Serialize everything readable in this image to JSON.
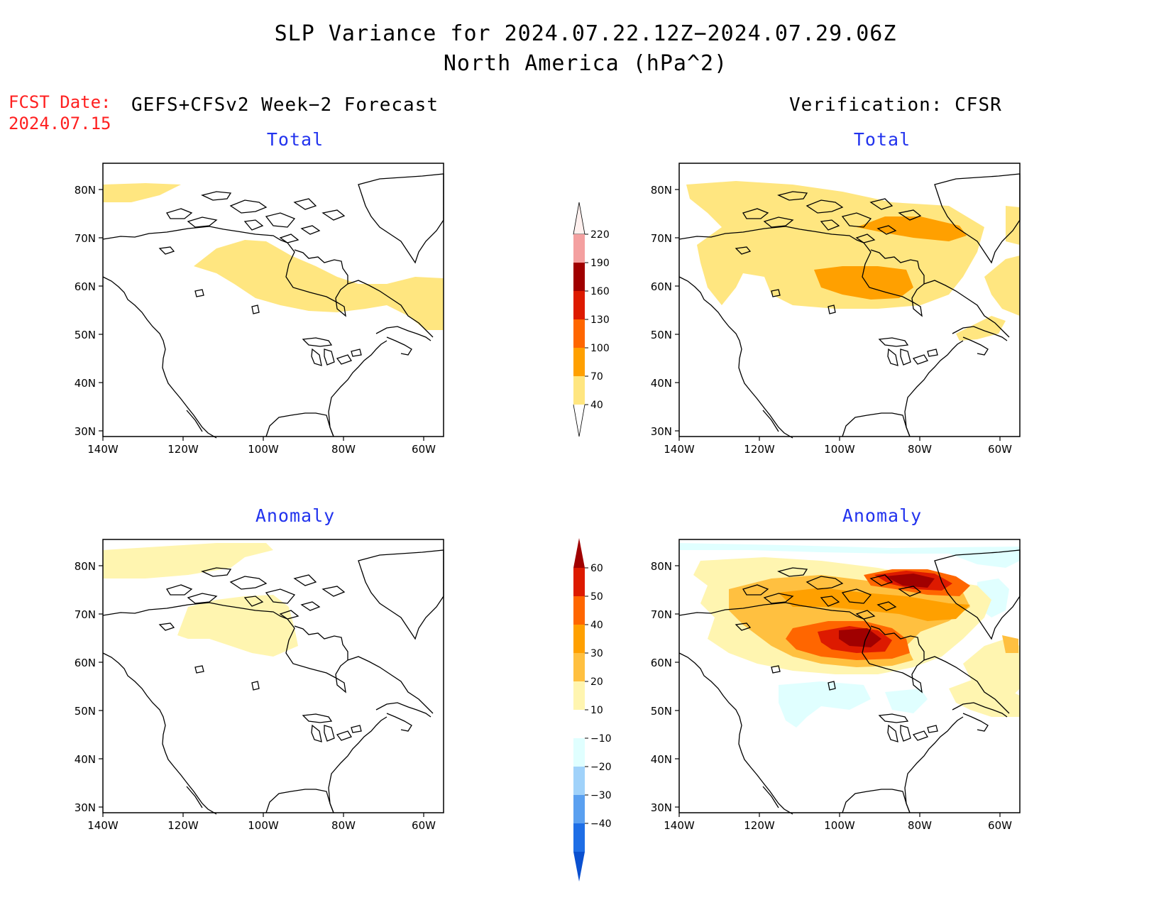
{
  "title": {
    "line1": "SLP Variance for 2024.07.22.12Z−2024.07.29.06Z",
    "line2": "North America (hPa^2)"
  },
  "fcst": {
    "label": "FCST Date:",
    "date": "2024.07.15"
  },
  "columns": {
    "left": "GEFS+CFSv2 Week−2 Forecast",
    "right": "Verification: CFSR"
  },
  "panels": {
    "top_left": "Total",
    "top_right": "Total",
    "bottom_left": "Anomaly",
    "bottom_right": "Anomaly"
  },
  "axes": {
    "lat_labels": [
      "80N",
      "70N",
      "60N",
      "50N",
      "40N",
      "30N"
    ],
    "lon_labels": [
      "140W",
      "120W",
      "100W",
      "80W",
      "60W"
    ]
  },
  "colorbar_total": {
    "levels": [
      "220",
      "190",
      "160",
      "130",
      "100",
      "70",
      "40"
    ],
    "colors": [
      "#f4a0a0",
      "#a00000",
      "#dd1a00",
      "#ff6600",
      "#ffa000",
      "#ffe680"
    ]
  },
  "colorbar_anomaly": {
    "levels": [
      "60",
      "50",
      "40",
      "30",
      "20",
      "10",
      "−10",
      "−20",
      "−30",
      "−40"
    ],
    "colors": [
      "#dd1a00",
      "#ff6600",
      "#ffa000",
      "#ffc040",
      "#fff5b0",
      "#ffffff",
      "#e0ffff",
      "#a0d2fa",
      "#5aa0f0",
      "#1e6ee6"
    ],
    "top_color": "#a00000",
    "bottom_color": "#0a50d0"
  }
}
